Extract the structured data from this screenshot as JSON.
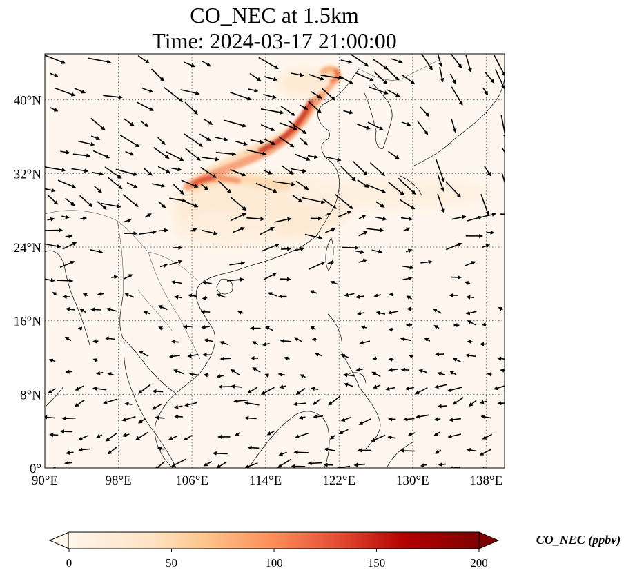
{
  "title": {
    "line1": "CO_NEC at 1.5km",
    "line2": "Time: 2024-03-17 21:00:00"
  },
  "map": {
    "lon_range": [
      90,
      140
    ],
    "lat_range": [
      0,
      45
    ],
    "lon_ticks": [
      {
        "value": 90,
        "label": "90°E"
      },
      {
        "value": 98,
        "label": "98°E"
      },
      {
        "value": 106,
        "label": "106°E"
      },
      {
        "value": 114,
        "label": "114°E"
      },
      {
        "value": 122,
        "label": "122°E"
      },
      {
        "value": 130,
        "label": "130°E"
      },
      {
        "value": 138,
        "label": "138°E"
      }
    ],
    "lat_ticks": [
      {
        "value": 0,
        "label": "0°"
      },
      {
        "value": 8,
        "label": "8°N"
      },
      {
        "value": 16,
        "label": "16°N"
      },
      {
        "value": 24,
        "label": "24°N"
      },
      {
        "value": 32,
        "label": "32°N"
      },
      {
        "value": 40,
        "label": "40°N"
      }
    ],
    "gridlines": "dotted",
    "plume_color_scale": "OrRd"
  },
  "colorbar": {
    "label": "CO_NEC (ppbv)",
    "min": 0,
    "max": 200,
    "extend": "both",
    "ticks": [
      {
        "value": 0,
        "label": "0"
      },
      {
        "value": 50,
        "label": "50"
      },
      {
        "value": 100,
        "label": "100"
      },
      {
        "value": 150,
        "label": "150"
      },
      {
        "value": 200,
        "label": "200"
      }
    ],
    "colors": [
      "#fff5eb",
      "#fdd49e",
      "#fdbb84",
      "#fc8d59",
      "#e34a33",
      "#b30000",
      "#7f0000"
    ]
  }
}
